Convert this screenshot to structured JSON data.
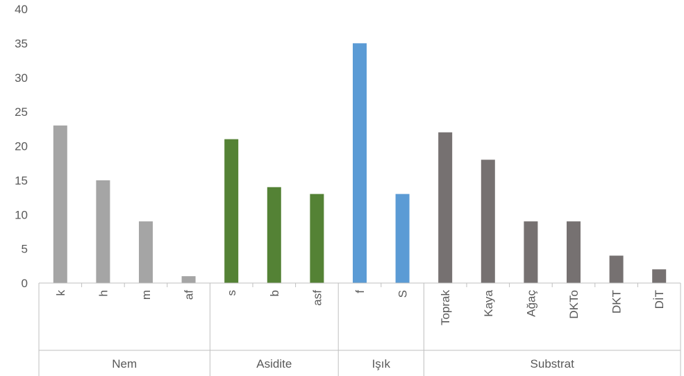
{
  "chart_data": {
    "type": "bar",
    "title": "",
    "xlabel": "",
    "ylabel": "",
    "ylim": [
      0,
      40
    ],
    "yticks": [
      0,
      5,
      10,
      15,
      20,
      25,
      30,
      35,
      40
    ],
    "grid": false,
    "legend": "none",
    "groups": [
      {
        "name": "Nem",
        "color": "#a5a5a5",
        "categories": [
          "k",
          "h",
          "m",
          "af"
        ],
        "values": [
          23,
          15,
          9,
          1
        ]
      },
      {
        "name": "Asidite",
        "color": "#548235",
        "categories": [
          "s",
          "b",
          "asf"
        ],
        "values": [
          21,
          14,
          13
        ]
      },
      {
        "name": "Işık",
        "color": "#5b9bd5",
        "categories": [
          "f",
          "S"
        ],
        "values": [
          35,
          13
        ]
      },
      {
        "name": "Substrat",
        "color": "#767171",
        "categories": [
          "Toprak",
          "Kaya",
          "Ağaç",
          "DKTo",
          "DKT",
          "DİT"
        ],
        "values": [
          22,
          18,
          9,
          9,
          4,
          2
        ]
      }
    ]
  }
}
